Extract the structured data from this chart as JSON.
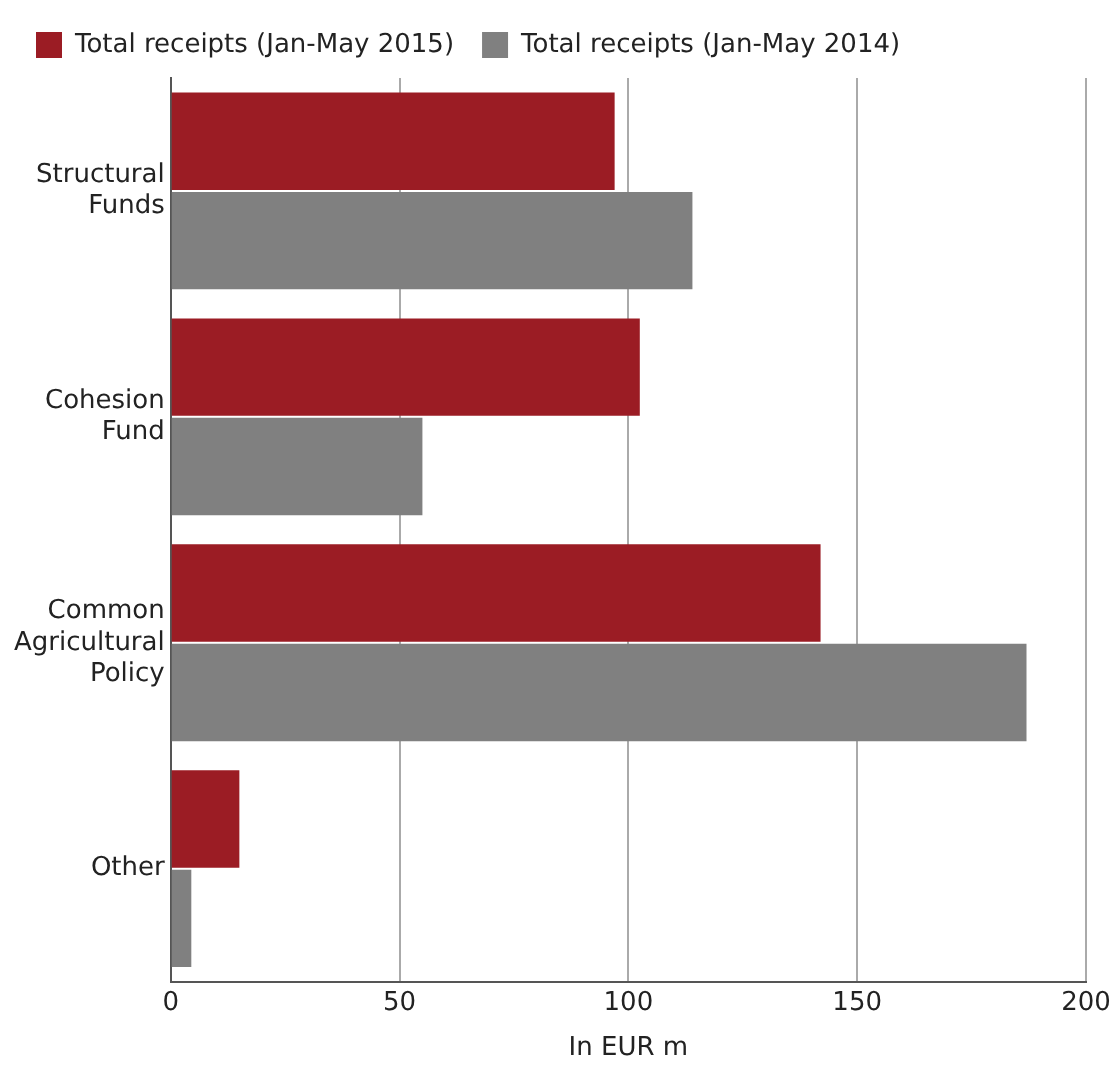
{
  "chart_data": {
    "type": "bar",
    "orientation": "horizontal",
    "xlabel": "In EUR m",
    "categories": [
      "Structural Funds",
      "Cohesion Fund",
      "Common Agricultural Policy",
      "Other"
    ],
    "series": [
      {
        "name": "Total receipts (Jan-May 2015)",
        "color": "#9b1c24",
        "values": [
          97,
          102.5,
          142,
          15
        ]
      },
      {
        "name": "Total receipts (Jan-May 2014)",
        "color": "#808080",
        "values": [
          114,
          55,
          187,
          4.5
        ]
      }
    ],
    "xlim": [
      0,
      200
    ],
    "xticks": [
      0,
      50,
      100,
      150,
      200
    ],
    "grid": "x",
    "legend": "top"
  }
}
